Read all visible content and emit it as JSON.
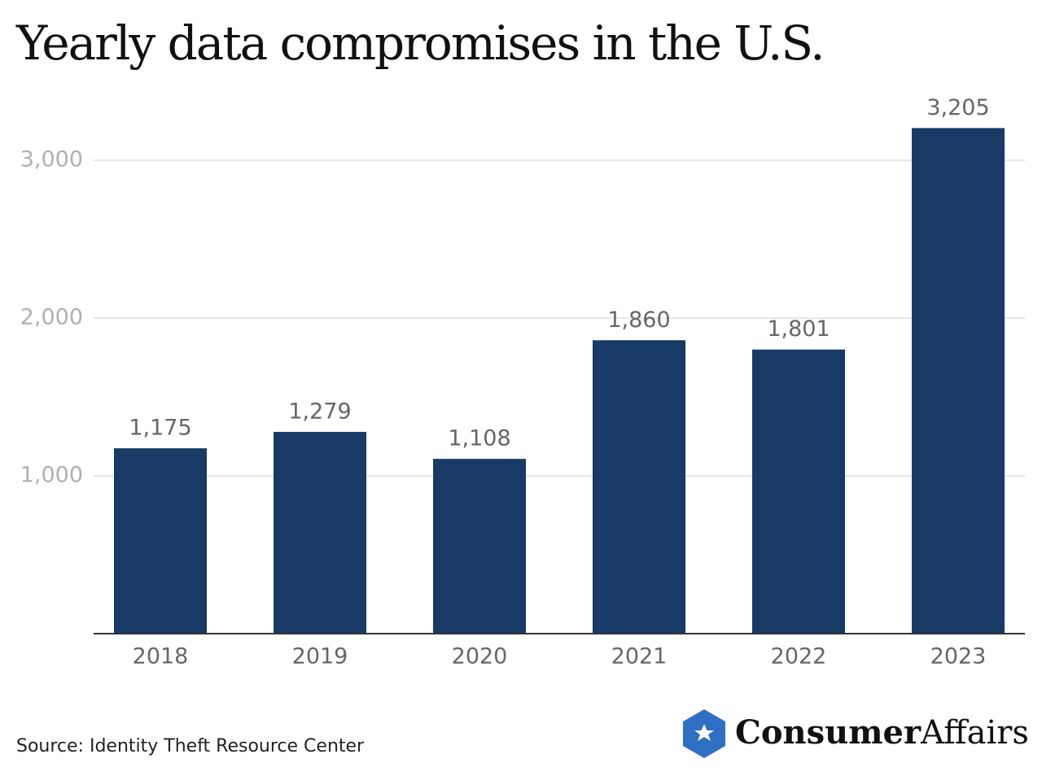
{
  "chart_data": {
    "type": "bar",
    "title": "Yearly data compromises in the U.S.",
    "categories": [
      "2018",
      "2019",
      "2020",
      "2021",
      "2022",
      "2023"
    ],
    "values": [
      1175,
      1279,
      1108,
      1860,
      1801,
      3205
    ],
    "value_labels": [
      "1,175",
      "1,279",
      "1,108",
      "1,860",
      "1,801",
      "3,205"
    ],
    "color": "#173a66",
    "ylim": [
      0,
      3300
    ],
    "yticks": [
      {
        "value": 1000,
        "label": "1,000"
      },
      {
        "value": 2000,
        "label": "2,000"
      },
      {
        "value": 3000,
        "label": "3,000"
      }
    ],
    "grid": true,
    "source": "Source: Identity Theft Resource Center",
    "brand": [
      "Consumer",
      "Affairs"
    ]
  }
}
